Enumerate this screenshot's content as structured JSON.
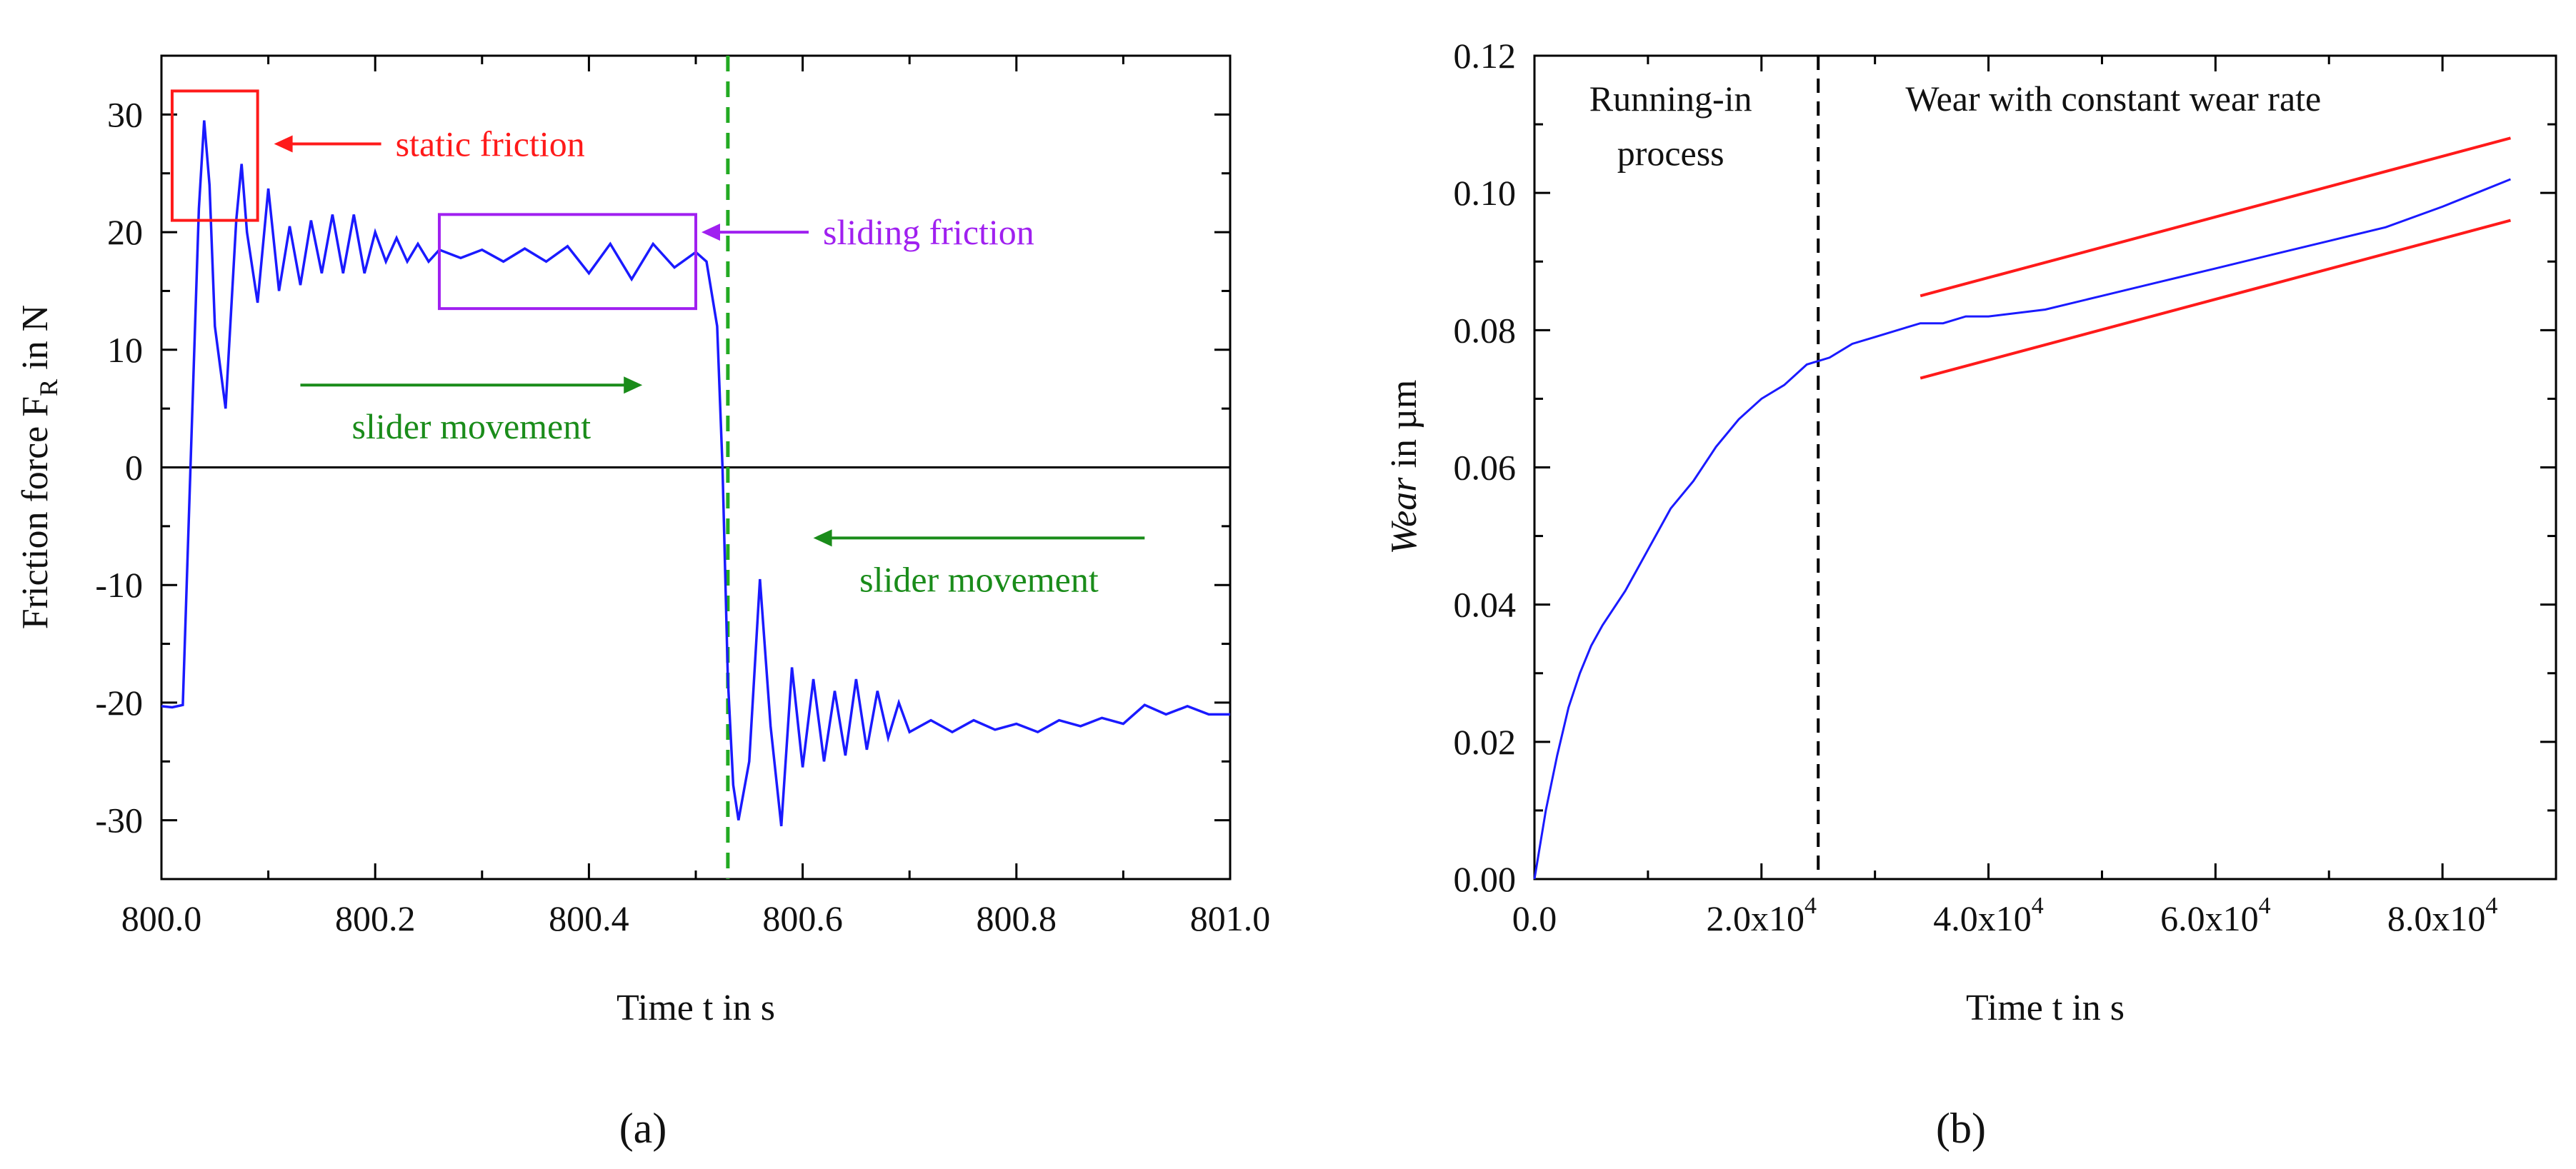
{
  "chart_data": [
    {
      "type": "line",
      "panel_label": "(a)",
      "xlabel": "Time t in s",
      "ylabel_main": "Friction force F",
      "ylabel_sub": "R",
      "ylabel_tail": " in N",
      "xlim": [
        800.0,
        801.0
      ],
      "ylim": [
        -35,
        35
      ],
      "xticks": [
        800.0,
        800.2,
        800.4,
        800.6,
        800.8,
        801.0
      ],
      "xtick_labels": [
        "800.0",
        "800.2",
        "800.4",
        "800.6",
        "800.8",
        "801.0"
      ],
      "yticks": [
        -30,
        -20,
        -10,
        0,
        10,
        20,
        30
      ],
      "ytick_labels": [
        "-30",
        "-20",
        "-10",
        "0",
        "10",
        "20",
        "30"
      ],
      "zero_line": 0,
      "reversal_time": 800.53,
      "series_color": "#1a1aff",
      "series": [
        {
          "name": "Friction force",
          "x": [
            800.0,
            800.01,
            800.02,
            800.03,
            800.035,
            800.04,
            800.045,
            800.05,
            800.06,
            800.07,
            800.075,
            800.08,
            800.09,
            800.1,
            800.11,
            800.12,
            800.13,
            800.14,
            800.15,
            800.16,
            800.17,
            800.18,
            800.19,
            800.2,
            800.21,
            800.22,
            800.23,
            800.24,
            800.25,
            800.26,
            800.28,
            800.3,
            800.32,
            800.34,
            800.36,
            800.38,
            800.4,
            800.42,
            800.44,
            800.46,
            800.48,
            800.5,
            800.51,
            800.52,
            800.525,
            800.53,
            800.535,
            800.54,
            800.55,
            800.56,
            800.57,
            800.58,
            800.59,
            800.6,
            800.61,
            800.62,
            800.63,
            800.64,
            800.65,
            800.66,
            800.67,
            800.68,
            800.69,
            800.7,
            800.72,
            800.74,
            800.76,
            800.78,
            800.8,
            800.82,
            800.84,
            800.86,
            800.88,
            800.9,
            800.92,
            800.94,
            800.96,
            800.98,
            801.0
          ],
          "y": [
            -20.3,
            -20.4,
            -20.2,
            8.0,
            22.0,
            29.5,
            24.0,
            12.0,
            5.0,
            21.0,
            25.8,
            20.0,
            14.0,
            23.7,
            15.0,
            20.5,
            15.5,
            21.0,
            16.5,
            21.5,
            16.5,
            21.5,
            16.5,
            20.0,
            17.5,
            19.5,
            17.5,
            19.0,
            17.5,
            18.5,
            17.8,
            18.5,
            17.5,
            18.6,
            17.5,
            18.8,
            16.5,
            19.0,
            16.0,
            19.0,
            17.0,
            18.3,
            17.5,
            12.0,
            0.0,
            -18.0,
            -27.0,
            -30.0,
            -25.0,
            -9.5,
            -22.0,
            -30.5,
            -17.0,
            -25.5,
            -18.0,
            -25.0,
            -19.0,
            -24.5,
            -18.0,
            -24.0,
            -19.0,
            -23.0,
            -20.0,
            -22.5,
            -21.5,
            -22.5,
            -21.5,
            -22.3,
            -21.8,
            -22.5,
            -21.5,
            -22.0,
            -21.3,
            -21.8,
            -20.2,
            -21.0,
            -20.3,
            -21.0,
            -21.0
          ]
        }
      ],
      "annotations": [
        {
          "text": "static friction",
          "color": "#ff1a1a",
          "box_x": [
            800.01,
            800.09
          ],
          "box_y": [
            21,
            32
          ],
          "arrow_tip": [
            800.1,
            27.5
          ]
        },
        {
          "text": "sliding friction",
          "color": "#a020f0",
          "box_x": [
            800.26,
            800.5
          ],
          "box_y": [
            13.5,
            21.5
          ],
          "arrow_tip": [
            800.5,
            20
          ]
        },
        {
          "text": "slider movement",
          "color": "#1a8c1a",
          "arrow_from": [
            800.13,
            7
          ],
          "arrow_to": [
            800.45,
            7
          ]
        },
        {
          "text": "slider movement",
          "color": "#1a8c1a",
          "arrow_from": [
            800.92,
            -6
          ],
          "arrow_to": [
            800.61,
            -6
          ]
        }
      ]
    },
    {
      "type": "line",
      "panel_label": "(b)",
      "xlabel": "Time t in s",
      "ylabel_italic": "Wear",
      "ylabel_tail": " in µm",
      "xlim": [
        0,
        90000
      ],
      "ylim": [
        0,
        0.12
      ],
      "xticks": [
        0,
        20000,
        40000,
        60000,
        80000
      ],
      "xtick_labels": [
        "0.0",
        "2.0x10",
        "4.0x10",
        "6.0x10",
        "8.0x10"
      ],
      "xtick_exponent": "4",
      "yticks": [
        0,
        0.02,
        0.04,
        0.06,
        0.08,
        0.1,
        0.12
      ],
      "ytick_labels": [
        "0.00",
        "0.02",
        "0.04",
        "0.06",
        "0.08",
        "0.10",
        "0.12"
      ],
      "phase_boundary": 25000,
      "series_color": "#1a1aff",
      "series": [
        {
          "name": "Wear",
          "x": [
            0,
            1000,
            2000,
            3000,
            4000,
            5000,
            6000,
            8000,
            10000,
            12000,
            14000,
            16000,
            18000,
            20000,
            22000,
            24000,
            26000,
            28000,
            30000,
            32000,
            34000,
            36000,
            38000,
            40000,
            45000,
            50000,
            55000,
            60000,
            65000,
            70000,
            75000,
            80000,
            83000,
            86000
          ],
          "y": [
            0.0,
            0.01,
            0.018,
            0.025,
            0.03,
            0.034,
            0.037,
            0.042,
            0.048,
            0.054,
            0.058,
            0.063,
            0.067,
            0.07,
            0.072,
            0.075,
            0.076,
            0.078,
            0.079,
            0.08,
            0.081,
            0.081,
            0.082,
            0.082,
            0.083,
            0.085,
            0.087,
            0.089,
            0.091,
            0.093,
            0.095,
            0.098,
            0.1,
            0.102
          ]
        }
      ],
      "band_lines": [
        {
          "color": "#ff1a1a",
          "x": [
            34000,
            86000
          ],
          "y": [
            0.085,
            0.108
          ]
        },
        {
          "color": "#ff1a1a",
          "x": [
            34000,
            86000
          ],
          "y": [
            0.073,
            0.096
          ]
        }
      ],
      "annotations": [
        {
          "text": "Running-in",
          "x": 12000,
          "y": 0.112
        },
        {
          "text": "process",
          "x": 12000,
          "y": 0.104
        },
        {
          "text": "Wear with constant wear rate",
          "x": 51000,
          "y": 0.112
        }
      ]
    }
  ]
}
